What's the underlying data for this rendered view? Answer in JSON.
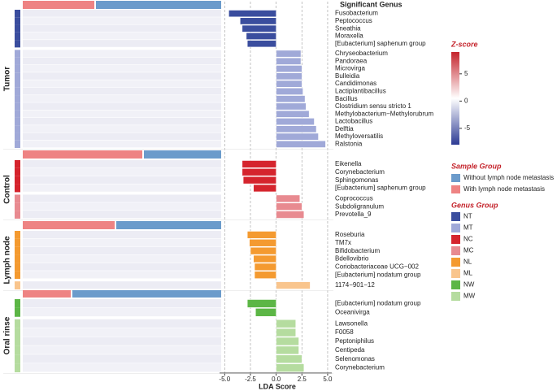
{
  "chart_data": {
    "type": "bar",
    "orientation": "horizontal",
    "header": "Significant Genus",
    "xlabel": "LDA Score",
    "xlim": [
      -5.5,
      5.4
    ],
    "xticks": [
      {
        "value": -5,
        "label": "-5.0"
      },
      {
        "value": -2.5,
        "label": "-2.5"
      },
      {
        "value": 0,
        "label": "0.0"
      },
      2.5,
      {
        "value": 5,
        "label": "5.0"
      }
    ],
    "grid": true,
    "panels": [
      {
        "label": "Tumor",
        "categories": [
          "Fusobacterium",
          "Peptococcus",
          "Sneathia",
          "Moraxella",
          "[Eubacterium] saphenum group",
          "Chryseobacterium",
          "Pandoraea",
          "Microvirga",
          "Bulleidia",
          "Candidimonas",
          "Lactiplantibacillus",
          "Bacillus",
          "Clostridium sensu stricto 1",
          "Methylobacterium−Methylorubrum",
          "Lactobacillus",
          "Delftia",
          "Methyloversatilis",
          "Ralstonia"
        ],
        "values": [
          -4.6,
          -3.5,
          -3.3,
          -2.9,
          -2.8,
          2.4,
          2.4,
          2.5,
          2.5,
          2.5,
          2.6,
          2.8,
          2.9,
          3.2,
          3.7,
          3.9,
          4.1,
          4.8
        ],
        "groups": [
          "NT",
          "NT",
          "NT",
          "NT",
          "NT",
          "MT",
          "MT",
          "MT",
          "MT",
          "MT",
          "MT",
          "MT",
          "MT",
          "MT",
          "MT",
          "MT",
          "MT",
          "MT"
        ]
      },
      {
        "label": "Control",
        "categories": [
          "Eikenella",
          "Corynebacterium",
          "Sphingomonas",
          "[Eubacterium] saphenum group",
          "Coprococcus",
          "Subdoligranulum",
          "Prevotella_9"
        ],
        "values": [
          -3.3,
          -3.3,
          -3.2,
          -2.2,
          2.3,
          2.5,
          2.7
        ],
        "groups": [
          "NC",
          "NC",
          "NC",
          "NC",
          "MC",
          "MC",
          "MC"
        ]
      },
      {
        "label": "Lymph node",
        "categories": [
          "Roseburia",
          "TM7x",
          "Bifidobacterium",
          "Bdellovibrio",
          "Coriobacteriaceae UCG−002",
          "[Eubacterium] nodatum group",
          "1174−901−12"
        ],
        "values": [
          -2.8,
          -2.6,
          -2.5,
          -2.2,
          -2.1,
          -2.1,
          3.3
        ],
        "groups": [
          "NL",
          "NL",
          "NL",
          "NL",
          "NL",
          "NL",
          "ML"
        ]
      },
      {
        "label": "Oral rinse",
        "categories": [
          "[Eubacterium] nodatum group",
          "Oceanivirga",
          "Lawsonella",
          "F0058",
          "Peptoniphilus",
          "Centipeda",
          "Selenomonas",
          "Corynebacterium"
        ],
        "values": [
          -2.8,
          -2.0,
          1.9,
          1.9,
          2.2,
          2.2,
          2.5,
          2.7
        ],
        "groups": [
          "NW",
          "NW",
          "MW",
          "MW",
          "MW",
          "MW",
          "MW",
          "MW"
        ]
      }
    ],
    "zscore": {
      "title": "Z-score",
      "clim": [
        -8,
        9
      ],
      "ticks": [
        5,
        0,
        -5
      ],
      "colors": [
        "#2c3a94",
        "#ffffff",
        "#c4232b"
      ]
    },
    "sample_group": {
      "title": "Sample Group",
      "items": [
        {
          "name": "Without lymph node metastasis",
          "color": "#6b9bcb"
        },
        {
          "name": "With lymph node metastasis",
          "color": "#ee8383"
        }
      ]
    },
    "genus_group": {
      "title": "Genus Group",
      "items": [
        {
          "name": "NT",
          "color": "#3a4d9e"
        },
        {
          "name": "MT",
          "color": "#a0a9d8"
        },
        {
          "name": "NC",
          "color": "#d5242d"
        },
        {
          "name": "MC",
          "color": "#e88a90"
        },
        {
          "name": "NL",
          "color": "#f49a30"
        },
        {
          "name": "ML",
          "color": "#f9c58d"
        },
        {
          "name": "NW",
          "color": "#5cb646"
        },
        {
          "name": "MW",
          "color": "#b5dc9f"
        }
      ]
    }
  }
}
